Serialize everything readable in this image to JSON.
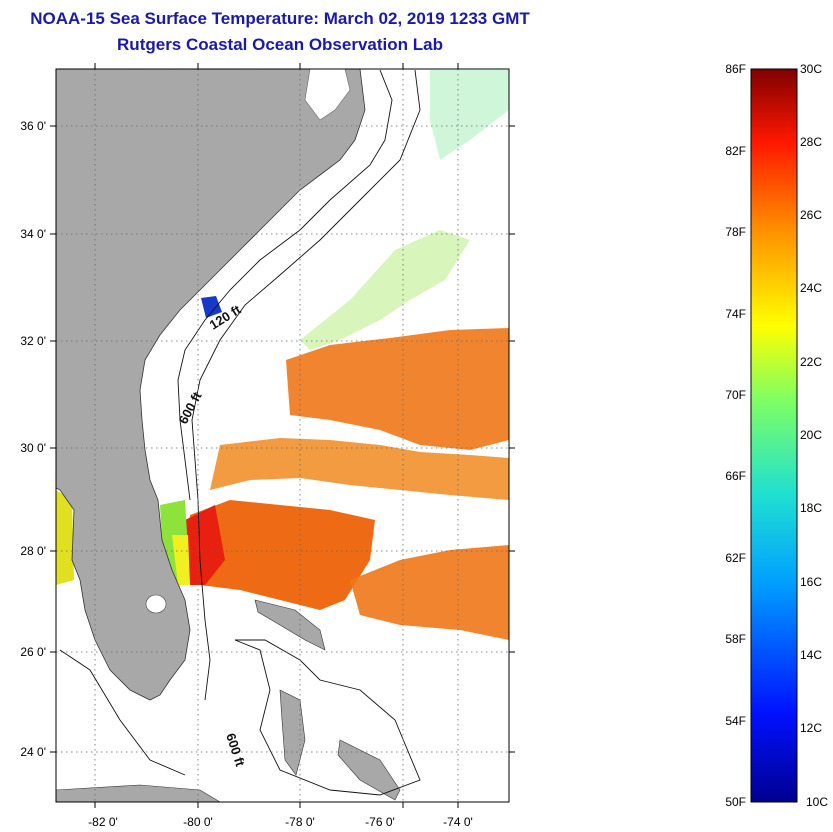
{
  "header": {
    "title": "NOAA-15 Sea Surface Temperature:  March 02, 2019 1233 GMT",
    "subtitle": "Rutgers Coastal Ocean Observation Lab"
  },
  "map": {
    "lat_labels": [
      "36 0'",
      "34 0'",
      "32 0'",
      "30 0'",
      "28 0'",
      "26 0'",
      "24 0'"
    ],
    "lon_labels": [
      "-82 0'",
      "-80 0'",
      "-78 0'",
      "-76 0'",
      "-74 0'"
    ],
    "contours": {
      "shelf_120": "120 ft",
      "shelf_600_north": "600 ft",
      "shelf_600_south": "600 ft"
    }
  },
  "colorbar": {
    "fahrenheit_labels": [
      "86F",
      "82F",
      "78F",
      "74F",
      "70F",
      "66F",
      "62F",
      "58F",
      "54F",
      "50F"
    ],
    "celsius_labels": [
      "30C",
      "28C",
      "26C",
      "24C",
      "22C",
      "20C",
      "18C",
      "16C",
      "14C",
      "12C",
      "10C"
    ],
    "range_f": [
      50,
      86
    ],
    "range_c": [
      10,
      30
    ]
  },
  "colors": {
    "title": "#1a1aa6",
    "land": "#a8a8a8",
    "sst_warm": "#f07818",
    "sst_hot": "#e82010",
    "sst_cold": "#1838c8"
  }
}
